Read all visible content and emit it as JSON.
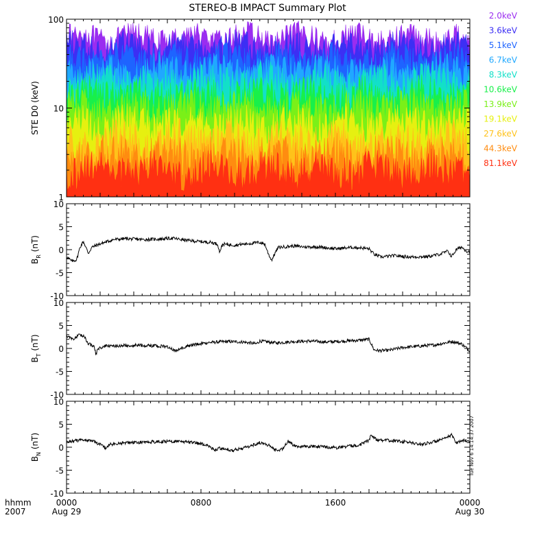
{
  "title": "STEREO-B IMPACT Summary Plot",
  "timestamp": "Tue Nov  6 14:14:37 2007",
  "x_axis": {
    "row_label_1": "hhmm",
    "row_label_2": "2007",
    "ticks": [
      {
        "hours": 0,
        "label": "0000",
        "sublabel": "Aug 29"
      },
      {
        "hours": 8,
        "label": "0800",
        "sublabel": ""
      },
      {
        "hours": 16,
        "label": "1600",
        "sublabel": ""
      },
      {
        "hours": 24,
        "label": "0000",
        "sublabel": "Aug 30"
      }
    ],
    "range_hours": [
      0,
      24
    ]
  },
  "colors": {
    "axis": "#000000",
    "trace": "#000000"
  },
  "chart_data": [
    {
      "type": "area",
      "id": "ste-spectrum",
      "ylabel": "STE D0 (keV)",
      "yscale": "log",
      "ylim": [
        1,
        100
      ],
      "yticks": [
        {
          "v": 1,
          "label": "1"
        },
        {
          "v": 10,
          "label": "10"
        },
        {
          "v": 100,
          "label": "100"
        }
      ],
      "series": [
        {
          "name": "2.0keV",
          "color": "#9a2df0",
          "base_level": 62,
          "variability": 0.14
        },
        {
          "name": "3.6keV",
          "color": "#3c2ff4",
          "base_level": 48,
          "variability": 0.16
        },
        {
          "name": "5.1keV",
          "color": "#1e64ff",
          "base_level": 36,
          "variability": 0.16
        },
        {
          "name": "6.7keV",
          "color": "#20a8ff",
          "base_level": 27,
          "variability": 0.17
        },
        {
          "name": "8.3keV",
          "color": "#12e0c8",
          "base_level": 20,
          "variability": 0.18
        },
        {
          "name": "10.6keV",
          "color": "#18f04a",
          "base_level": 14,
          "variability": 0.19
        },
        {
          "name": "13.9keV",
          "color": "#7af018",
          "base_level": 10,
          "variability": 0.2
        },
        {
          "name": "19.1keV",
          "color": "#e6f010",
          "base_level": 6.5,
          "variability": 0.2
        },
        {
          "name": "27.6keV",
          "color": "#ffc21a",
          "base_level": 4.2,
          "variability": 0.22
        },
        {
          "name": "44.3keV",
          "color": "#ff8c10",
          "base_level": 2.9,
          "variability": 0.22
        },
        {
          "name": "81.1keV",
          "color": "#ff3012",
          "base_level": 2.0,
          "variability": 0.2
        }
      ],
      "legend": "right"
    },
    {
      "type": "line",
      "id": "br",
      "ylabel_main": "B",
      "ylabel_sub": "R",
      "ylabel_unit": "(nT)",
      "ylim": [
        -10,
        10
      ],
      "yticks": [
        {
          "v": 10,
          "label": "10"
        },
        {
          "v": 5,
          "label": "5"
        },
        {
          "v": 0,
          "label": "0"
        },
        {
          "v": -5,
          "label": "-5"
        },
        {
          "v": -10,
          "label": "-10"
        }
      ],
      "points": [
        [
          0,
          -1.5
        ],
        [
          0.3,
          -2.5
        ],
        [
          0.6,
          -2.2
        ],
        [
          0.8,
          0.5
        ],
        [
          1.0,
          1.8
        ],
        [
          1.3,
          -0.8
        ],
        [
          1.5,
          0.5
        ],
        [
          1.8,
          1.0
        ],
        [
          2.2,
          1.5
        ],
        [
          2.8,
          2.2
        ],
        [
          3.5,
          2.4
        ],
        [
          4.5,
          2.2
        ],
        [
          5.5,
          2.3
        ],
        [
          6.3,
          2.5
        ],
        [
          7.0,
          2.1
        ],
        [
          7.8,
          1.8
        ],
        [
          8.6,
          1.6
        ],
        [
          9.0,
          1.2
        ],
        [
          9.1,
          -0.5
        ],
        [
          9.3,
          1.2
        ],
        [
          10.0,
          1.0
        ],
        [
          10.8,
          1.3
        ],
        [
          11.5,
          1.6
        ],
        [
          11.8,
          1.2
        ],
        [
          12.0,
          -0.8
        ],
        [
          12.2,
          -2.3
        ],
        [
          12.4,
          -0.8
        ],
        [
          12.6,
          0.5
        ],
        [
          13.5,
          0.8
        ],
        [
          14.2,
          0.6
        ],
        [
          15.0,
          0.6
        ],
        [
          16.0,
          0.2
        ],
        [
          17.0,
          0.5
        ],
        [
          17.5,
          0.4
        ],
        [
          18.0,
          0.2
        ],
        [
          18.3,
          -1.0
        ],
        [
          18.7,
          -1.6
        ],
        [
          19.5,
          -1.3
        ],
        [
          20.5,
          -1.6
        ],
        [
          21.5,
          -1.5
        ],
        [
          22.2,
          -1.0
        ],
        [
          22.7,
          -0.3
        ],
        [
          22.9,
          -1.5
        ],
        [
          23.2,
          0.0
        ],
        [
          23.5,
          0.6
        ],
        [
          23.8,
          -0.3
        ],
        [
          24.0,
          -0.5
        ]
      ]
    },
    {
      "type": "line",
      "id": "bt",
      "ylabel_main": "B",
      "ylabel_sub": "T",
      "ylabel_unit": "(nT)",
      "ylim": [
        -10,
        10
      ],
      "yticks": [
        {
          "v": 10,
          "label": "10"
        },
        {
          "v": 5,
          "label": "5"
        },
        {
          "v": 0,
          "label": "0"
        },
        {
          "v": -5,
          "label": "-5"
        },
        {
          "v": -10,
          "label": "-10"
        }
      ],
      "points": [
        [
          0,
          2.8
        ],
        [
          0.4,
          2.0
        ],
        [
          0.8,
          3.0
        ],
        [
          1.1,
          2.4
        ],
        [
          1.3,
          1.0
        ],
        [
          1.6,
          0.6
        ],
        [
          1.75,
          -1.2
        ],
        [
          1.9,
          0.0
        ],
        [
          2.3,
          0.5
        ],
        [
          3.0,
          0.6
        ],
        [
          4.0,
          0.7
        ],
        [
          5.0,
          0.6
        ],
        [
          6.0,
          0.4
        ],
        [
          6.5,
          -0.6
        ],
        [
          6.8,
          0.1
        ],
        [
          7.5,
          0.8
        ],
        [
          8.5,
          1.3
        ],
        [
          9.5,
          1.5
        ],
        [
          10.5,
          1.4
        ],
        [
          11.3,
          1.0
        ],
        [
          11.5,
          1.6
        ],
        [
          12.5,
          1.2
        ],
        [
          13.5,
          1.5
        ],
        [
          14.5,
          1.6
        ],
        [
          15.5,
          1.4
        ],
        [
          16.5,
          1.6
        ],
        [
          17.5,
          1.8
        ],
        [
          18.0,
          2.0
        ],
        [
          18.3,
          -0.3
        ],
        [
          18.6,
          -0.5
        ],
        [
          19.2,
          -0.4
        ],
        [
          20.0,
          0.2
        ],
        [
          21.0,
          0.5
        ],
        [
          22.0,
          0.8
        ],
        [
          22.5,
          1.2
        ],
        [
          23.0,
          1.5
        ],
        [
          23.5,
          1.0
        ],
        [
          24.0,
          -0.5
        ]
      ]
    },
    {
      "type": "line",
      "id": "bn",
      "ylabel_main": "B",
      "ylabel_sub": "N",
      "ylabel_unit": "(nT)",
      "ylim": [
        -10,
        10
      ],
      "yticks": [
        {
          "v": 10,
          "label": "10"
        },
        {
          "v": 5,
          "label": "5"
        },
        {
          "v": 0,
          "label": "0"
        },
        {
          "v": -5,
          "label": "-5"
        },
        {
          "v": -10,
          "label": "-10"
        }
      ],
      "points": [
        [
          0,
          1.2
        ],
        [
          0.5,
          1.4
        ],
        [
          1.0,
          1.6
        ],
        [
          1.5,
          1.4
        ],
        [
          2.0,
          0.6
        ],
        [
          2.3,
          -0.2
        ],
        [
          2.6,
          0.6
        ],
        [
          3.5,
          1.0
        ],
        [
          4.5,
          1.1
        ],
        [
          5.5,
          1.2
        ],
        [
          6.5,
          1.3
        ],
        [
          7.5,
          1.0
        ],
        [
          8.3,
          0.6
        ],
        [
          8.8,
          -0.5
        ],
        [
          9.2,
          -0.2
        ],
        [
          9.8,
          -0.8
        ],
        [
          10.5,
          -0.2
        ],
        [
          11.0,
          0.3
        ],
        [
          11.5,
          1.0
        ],
        [
          12.0,
          0.5
        ],
        [
          12.4,
          -0.6
        ],
        [
          12.8,
          -0.5
        ],
        [
          13.2,
          1.3
        ],
        [
          13.5,
          0.4
        ],
        [
          14.0,
          0.1
        ],
        [
          15.0,
          0.2
        ],
        [
          16.0,
          -0.1
        ],
        [
          17.0,
          0.3
        ],
        [
          17.5,
          0.6
        ],
        [
          18.0,
          1.5
        ],
        [
          18.1,
          2.6
        ],
        [
          18.5,
          1.6
        ],
        [
          19.5,
          1.4
        ],
        [
          20.5,
          1.0
        ],
        [
          21.0,
          0.6
        ],
        [
          21.5,
          0.9
        ],
        [
          22.0,
          1.3
        ],
        [
          22.5,
          1.8
        ],
        [
          22.9,
          2.7
        ],
        [
          23.2,
          1.0
        ],
        [
          23.6,
          1.5
        ],
        [
          24.0,
          1.3
        ]
      ]
    }
  ]
}
